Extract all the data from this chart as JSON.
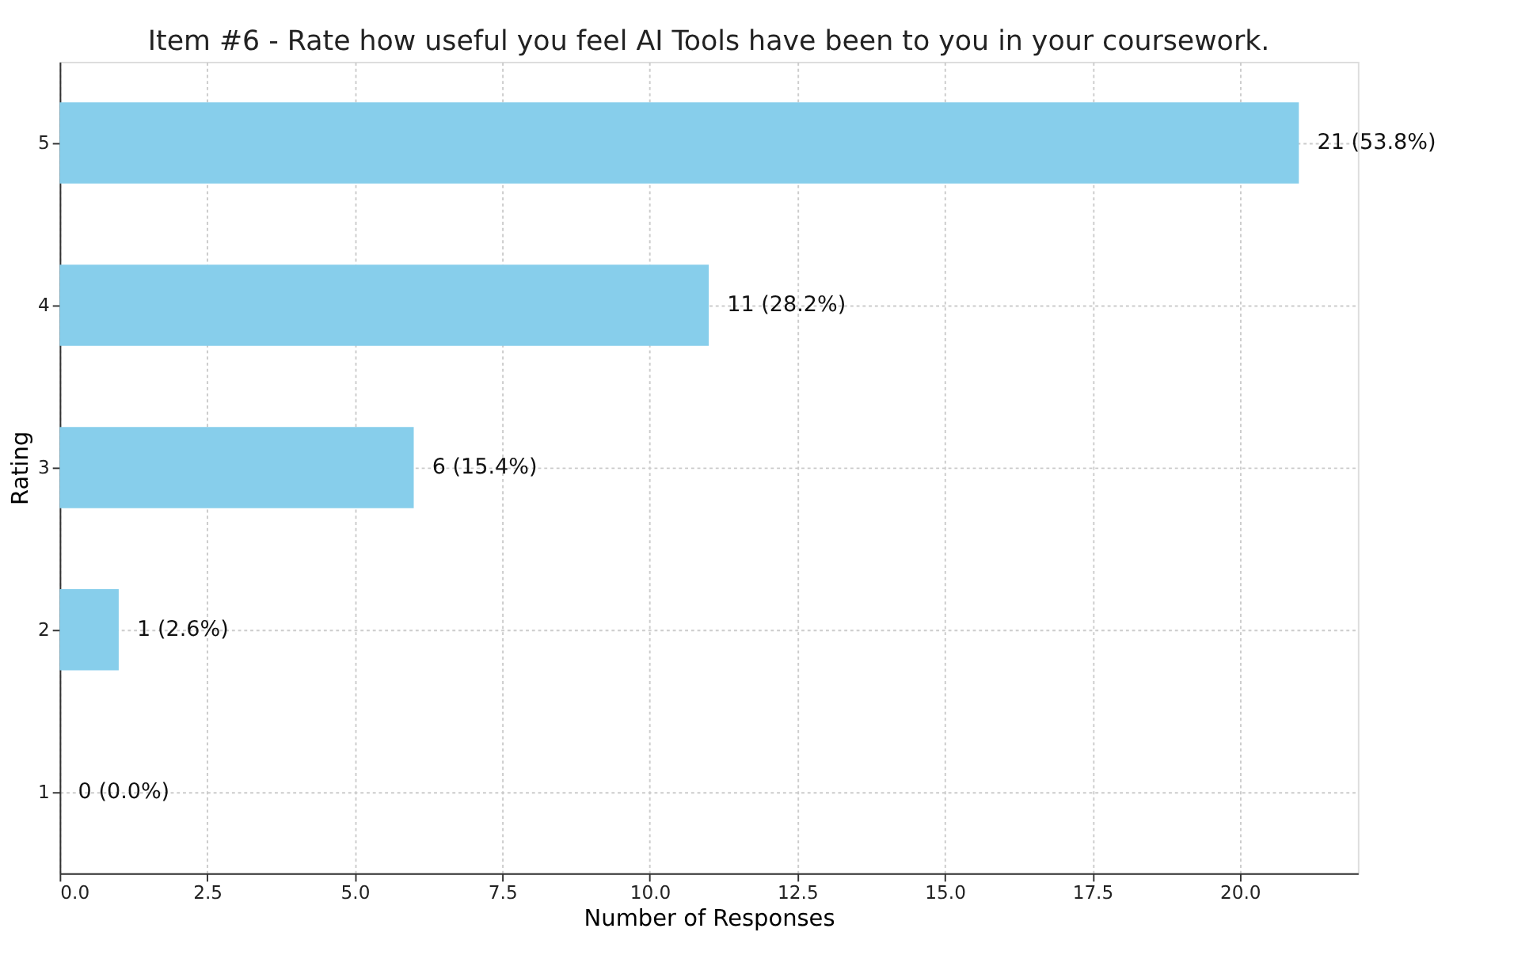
{
  "chart_data": {
    "type": "bar",
    "orientation": "horizontal",
    "title": "Item #6 - Rate how useful you feel AI Tools have been to you in your coursework.",
    "xlabel": "Number of Responses",
    "ylabel": "Rating",
    "categories": [
      "5",
      "4",
      "3",
      "2",
      "1"
    ],
    "values": [
      21,
      11,
      6,
      1,
      0
    ],
    "value_labels": [
      "21 (53.8%)",
      "11 (28.2%)",
      "6 (15.4%)",
      "1 (2.6%)",
      "0 (0.0%)"
    ],
    "color": "#87ceeb",
    "xlim": [
      0,
      22
    ],
    "xticks": [
      {
        "value": 0,
        "label": "0.0"
      },
      {
        "value": 2.5,
        "label": "2.5"
      },
      {
        "value": 5,
        "label": "5.0"
      },
      {
        "value": 7.5,
        "label": "7.5"
      },
      {
        "value": 10,
        "label": "10.0"
      },
      {
        "value": 12.5,
        "label": "12.5"
      },
      {
        "value": 15,
        "label": "15.0"
      },
      {
        "value": 17.5,
        "label": "17.5"
      },
      {
        "value": 20,
        "label": "20.0"
      }
    ],
    "grid": true
  }
}
